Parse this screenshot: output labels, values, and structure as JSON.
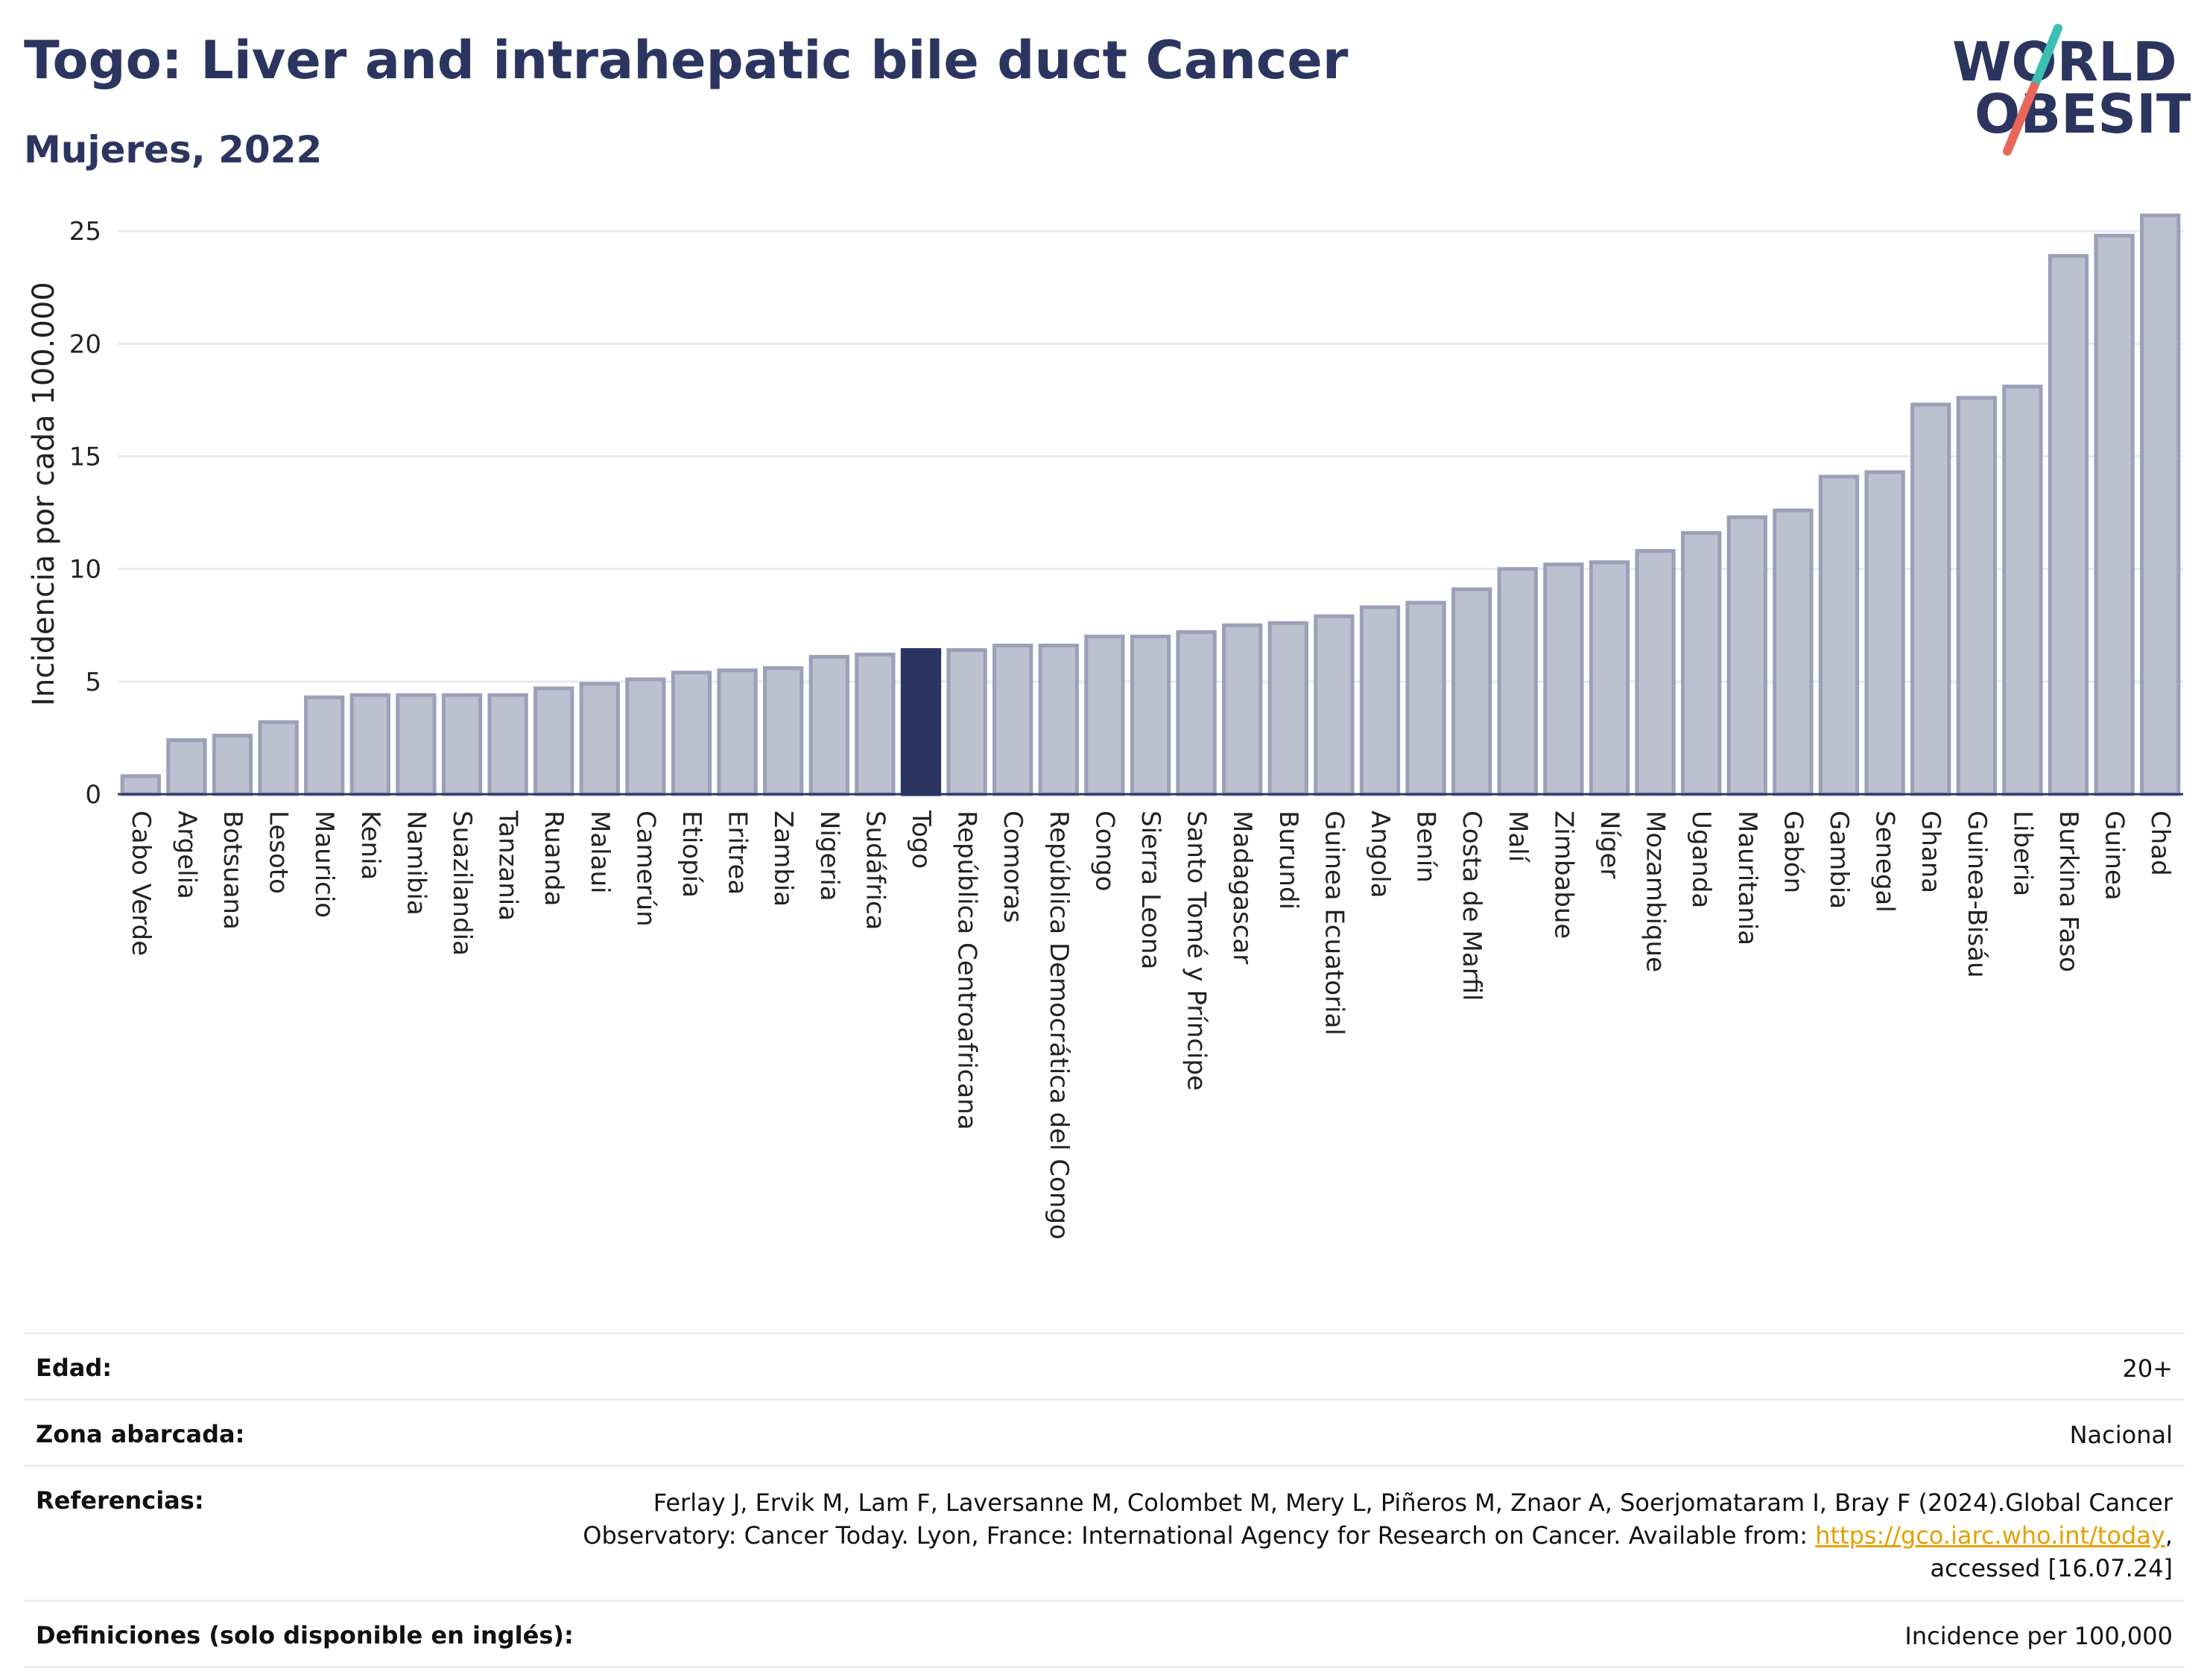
{
  "header": {
    "title": "Togo: Liver and intrahepatic bile duct Cancer",
    "subtitle": "Mujeres, 2022"
  },
  "logo": {
    "line1": "WORLD",
    "line2": "OBESITY",
    "accent_slash_colors": [
      "#3bbfb3",
      "#e8675a"
    ]
  },
  "colors": {
    "bar": "#bcc0cf",
    "bar_border": "#9aa0b8",
    "highlight": "#2b3560"
  },
  "chart_data": {
    "type": "bar",
    "ylabel": "Incidencia por cada 100.000",
    "ylim": [
      0,
      26
    ],
    "yticks": [
      0,
      5,
      10,
      15,
      20,
      25
    ],
    "grid": true,
    "highlight": "Togo",
    "categories": [
      "Cabo Verde",
      "Argelia",
      "Botsuana",
      "Lesoto",
      "Mauricio",
      "Kenia",
      "Namibia",
      "Suazilandia",
      "Tanzania",
      "Ruanda",
      "Malaui",
      "Camerún",
      "Etiopía",
      "Eritrea",
      "Zambia",
      "Nigeria",
      "Sudáfrica",
      "Togo",
      "República Centroafricana",
      "Comoras",
      "República Democrática del Congo",
      "Congo",
      "Sierra Leona",
      "Santo Tomé y Príncipe",
      "Madagascar",
      "Burundi",
      "Guinea Ecuatorial",
      "Angola",
      "Benín",
      "Costa de Marfil",
      "Malí",
      "Zimbabue",
      "Níger",
      "Mozambique",
      "Uganda",
      "Mauritania",
      "Gabón",
      "Gambia",
      "Senegal",
      "Ghana",
      "Guinea-Bisáu",
      "Liberia",
      "Burkina Faso",
      "Guinea",
      "Chad"
    ],
    "values": [
      0.8,
      2.4,
      2.6,
      3.2,
      4.3,
      4.4,
      4.4,
      4.4,
      4.4,
      4.7,
      4.9,
      5.1,
      5.4,
      5.5,
      5.6,
      6.1,
      6.2,
      6.4,
      6.4,
      6.6,
      6.6,
      7.0,
      7.0,
      7.2,
      7.5,
      7.6,
      7.9,
      8.3,
      8.5,
      9.1,
      10.0,
      10.2,
      10.3,
      10.8,
      11.6,
      12.3,
      12.6,
      14.1,
      14.3,
      17.3,
      17.6,
      18.1,
      23.9,
      24.8,
      25.7
    ]
  },
  "info": {
    "edad_label": "Edad:",
    "edad_value": "20+",
    "zona_label": "Zona abarcada:",
    "zona_value": "Nacional",
    "ref_label": "Referencias:",
    "ref_line1": "Ferlay J, Ervik M, Lam F, Laversanne M, Colombet M, Mery L, Piñeros M, Znaor A, Soerjomataram I, Bray F (2024).Global Cancer",
    "ref_line2": "Observatory: Cancer Today. Lyon, France: International Agency for Research on Cancer. Available from: ",
    "ref_link": "https://gco.iarc.who.int/today",
    "ref_line2_end": ",",
    "ref_line3": "accessed [16.07.24]",
    "def_label": "Definiciones (solo disponible en inglés):",
    "def_value": "Incidence per 100,000"
  }
}
